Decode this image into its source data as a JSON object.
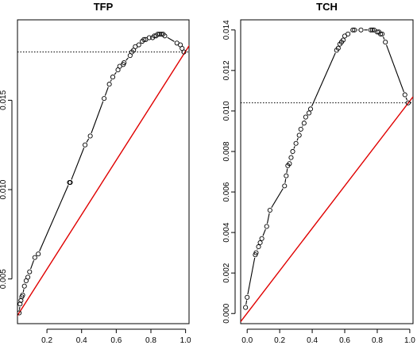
{
  "chart_data": [
    {
      "type": "line",
      "title": "TFP",
      "xlabel": "",
      "ylabel": "",
      "xlim": [
        0.03,
        1.02
      ],
      "ylim": [
        0.0025,
        0.0195
      ],
      "xticks": [
        0.2,
        0.4,
        0.6,
        0.8,
        1.0
      ],
      "xtick_labels": [
        "0.2",
        "0.4",
        "0.6",
        "0.8",
        "1.0"
      ],
      "yticks": [
        0.005,
        0.01,
        0.015
      ],
      "ytick_labels": [
        "0.005",
        "0.010",
        "0.015"
      ],
      "hline": 0.0177,
      "diagonal": {
        "x": [
          0.0,
          1.05
        ],
        "y": [
          0.0025,
          0.0185
        ]
      },
      "points": [
        [
          0.04,
          0.0031
        ],
        [
          0.045,
          0.0036
        ],
        [
          0.05,
          0.0038
        ],
        [
          0.055,
          0.004
        ],
        [
          0.06,
          0.0041
        ],
        [
          0.07,
          0.0046
        ],
        [
          0.08,
          0.0049
        ],
        [
          0.09,
          0.0051
        ],
        [
          0.1,
          0.0054
        ],
        [
          0.13,
          0.0062
        ],
        [
          0.15,
          0.0064
        ],
        [
          0.33,
          0.0104
        ],
        [
          0.335,
          0.0104
        ],
        [
          0.42,
          0.0125
        ],
        [
          0.45,
          0.013
        ],
        [
          0.53,
          0.0151
        ],
        [
          0.56,
          0.0159
        ],
        [
          0.58,
          0.0163
        ],
        [
          0.61,
          0.0167
        ],
        [
          0.62,
          0.0169
        ],
        [
          0.64,
          0.017
        ],
        [
          0.645,
          0.0171
        ],
        [
          0.68,
          0.0175
        ],
        [
          0.69,
          0.0177
        ],
        [
          0.7,
          0.0178
        ],
        [
          0.71,
          0.018
        ],
        [
          0.73,
          0.0181
        ],
        [
          0.75,
          0.0183
        ],
        [
          0.76,
          0.0184
        ],
        [
          0.77,
          0.0184
        ],
        [
          0.79,
          0.0185
        ],
        [
          0.81,
          0.0185
        ],
        [
          0.82,
          0.0186
        ],
        [
          0.83,
          0.0186
        ],
        [
          0.84,
          0.0187
        ],
        [
          0.85,
          0.0187
        ],
        [
          0.86,
          0.0187
        ],
        [
          0.87,
          0.0187
        ],
        [
          0.88,
          0.0186
        ],
        [
          0.95,
          0.0182
        ],
        [
          0.97,
          0.0181
        ],
        [
          0.98,
          0.0179
        ],
        [
          0.99,
          0.0177
        ]
      ],
      "grid": false
    },
    {
      "type": "line",
      "title": "TCH",
      "xlabel": "",
      "ylabel": "",
      "xlim": [
        -0.04,
        1.02
      ],
      "ylim": [
        -0.0005,
        0.0145
      ],
      "xticks": [
        0.0,
        0.2,
        0.4,
        0.6,
        0.8,
        1.0
      ],
      "xtick_labels": [
        "0.0",
        "0.2",
        "0.4",
        "0.6",
        "0.8",
        "1.0"
      ],
      "yticks": [
        0.0,
        0.002,
        0.004,
        0.006,
        0.008,
        0.01,
        0.012,
        0.014
      ],
      "ytick_labels": [
        "0.000",
        "0.002",
        "0.004",
        "0.006",
        "0.008",
        "0.010",
        "0.012",
        "0.014"
      ],
      "hline": 0.0104,
      "diagonal": {
        "x": [
          -0.04,
          1.02
        ],
        "y": [
          -0.0004,
          0.0107
        ]
      },
      "points": [
        [
          -0.01,
          0.0003
        ],
        [
          0.0,
          0.0008
        ],
        [
          0.05,
          0.0029
        ],
        [
          0.055,
          0.003
        ],
        [
          0.07,
          0.0033
        ],
        [
          0.08,
          0.0035
        ],
        [
          0.09,
          0.0037
        ],
        [
          0.12,
          0.0043
        ],
        [
          0.14,
          0.0051
        ],
        [
          0.23,
          0.0063
        ],
        [
          0.24,
          0.0068
        ],
        [
          0.25,
          0.0073
        ],
        [
          0.26,
          0.0074
        ],
        [
          0.27,
          0.0077
        ],
        [
          0.28,
          0.008
        ],
        [
          0.3,
          0.0084
        ],
        [
          0.32,
          0.0088
        ],
        [
          0.33,
          0.0091
        ],
        [
          0.35,
          0.0094
        ],
        [
          0.36,
          0.0097
        ],
        [
          0.38,
          0.0099
        ],
        [
          0.39,
          0.0101
        ],
        [
          0.55,
          0.013
        ],
        [
          0.56,
          0.0131
        ],
        [
          0.57,
          0.0133
        ],
        [
          0.58,
          0.0134
        ],
        [
          0.59,
          0.0135
        ],
        [
          0.6,
          0.0137
        ],
        [
          0.62,
          0.0138
        ],
        [
          0.65,
          0.014
        ],
        [
          0.66,
          0.014
        ],
        [
          0.7,
          0.014
        ],
        [
          0.76,
          0.014
        ],
        [
          0.77,
          0.014
        ],
        [
          0.78,
          0.014
        ],
        [
          0.8,
          0.0139
        ],
        [
          0.81,
          0.0139
        ],
        [
          0.82,
          0.0138
        ],
        [
          0.83,
          0.0138
        ],
        [
          0.85,
          0.0134
        ],
        [
          0.97,
          0.0108
        ],
        [
          0.99,
          0.0104
        ]
      ],
      "grid": false
    }
  ]
}
